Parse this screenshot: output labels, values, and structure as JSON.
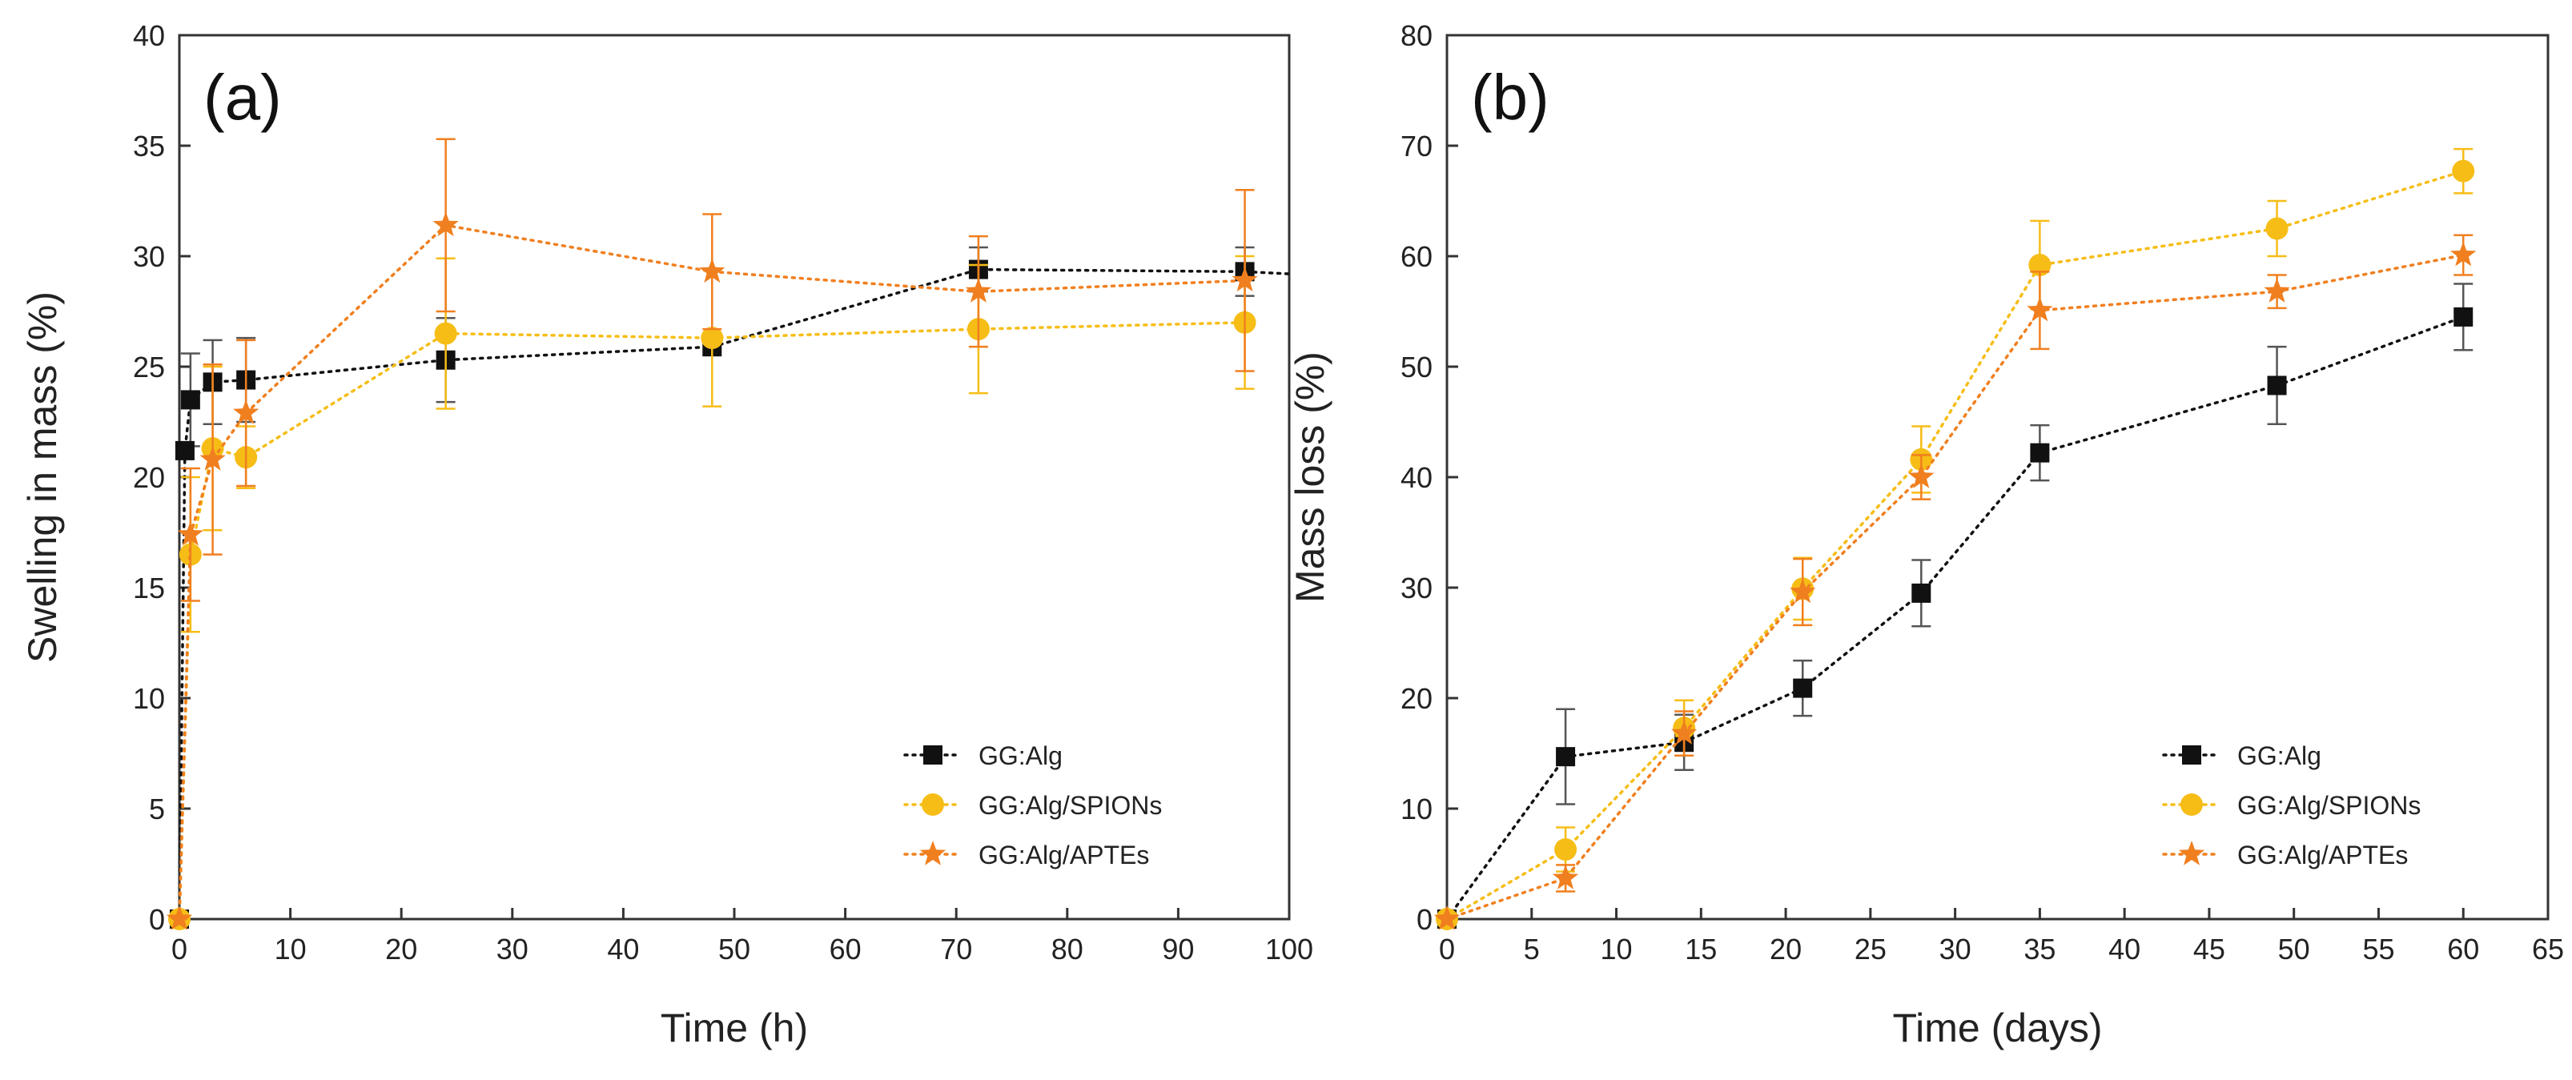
{
  "colors": {
    "GG:Alg": "#111111",
    "GG:Alg/SPIONs": "#f6bd16",
    "GG:Alg/APTEs": "#f07f1f"
  },
  "chart_data": [
    {
      "id": "a",
      "type": "line",
      "panel_label": "(a)",
      "xlabel": "Time (h)",
      "ylabel": "Swelling in mass (%)",
      "xlim": [
        0,
        100
      ],
      "ylim": [
        0,
        40
      ],
      "xticks": [
        "0",
        "10",
        "20",
        "30",
        "40",
        "50",
        "60",
        "70",
        "80",
        "90",
        "100"
      ],
      "yticks": [
        "0",
        "5",
        "10",
        "15",
        "20",
        "25",
        "30",
        "35",
        "40"
      ],
      "legend_position": "bottom-right",
      "series": [
        {
          "name": "GG:Alg",
          "marker": "square",
          "x": [
            0,
            0.5,
            1,
            3,
            6,
            24,
            48,
            72,
            96
          ],
          "y": [
            0,
            21.2,
            23.5,
            24.3,
            24.4,
            25.3,
            25.9,
            29.4,
            29.3
          ],
          "err": [
            0,
            0,
            2.1,
            1.9,
            1.9,
            1.9,
            0,
            1.0,
            1.1
          ],
          "tail_x": 100,
          "tail_y": 29.2
        },
        {
          "name": "GG:Alg/SPIONs",
          "marker": "circle",
          "x": [
            0,
            1,
            3,
            6,
            24,
            48,
            72,
            96
          ],
          "y": [
            0,
            16.5,
            21.3,
            20.9,
            26.5,
            26.3,
            26.7,
            27.0
          ],
          "err": [
            0,
            3.5,
            3.7,
            1.4,
            3.4,
            3.1,
            2.9,
            3.0
          ]
        },
        {
          "name": "GG:Alg/APTEs",
          "marker": "star",
          "x": [
            0,
            1,
            3,
            6,
            24,
            48,
            72,
            96
          ],
          "y": [
            0,
            17.4,
            20.8,
            22.9,
            31.4,
            29.3,
            28.4,
            28.9
          ],
          "err": [
            0,
            3.0,
            4.3,
            3.3,
            3.9,
            2.6,
            2.5,
            4.1
          ]
        }
      ]
    },
    {
      "id": "b",
      "type": "line",
      "panel_label": "(b)",
      "xlabel": "Time (days)",
      "ylabel": "Mass loss (%)",
      "xlim": [
        0,
        65
      ],
      "ylim": [
        0,
        80
      ],
      "xticks": [
        "0",
        "5",
        "10",
        "15",
        "20",
        "25",
        "30",
        "35",
        "40",
        "45",
        "50",
        "55",
        "60",
        "65"
      ],
      "yticks": [
        "0",
        "10",
        "20",
        "30",
        "40",
        "50",
        "60",
        "70",
        "80"
      ],
      "legend_position": "bottom-right",
      "series": [
        {
          "name": "GG:Alg",
          "marker": "square",
          "x": [
            0,
            7,
            14,
            21,
            28,
            35,
            49,
            60
          ],
          "y": [
            0,
            14.7,
            16.0,
            20.9,
            29.5,
            42.2,
            48.3,
            54.5
          ],
          "err": [
            0,
            4.3,
            2.5,
            2.5,
            3.0,
            2.5,
            3.5,
            3.0
          ]
        },
        {
          "name": "GG:Alg/SPIONs",
          "marker": "circle",
          "x": [
            0,
            7,
            14,
            21,
            28,
            35,
            49,
            60
          ],
          "y": [
            0,
            6.3,
            17.3,
            29.9,
            41.6,
            59.2,
            62.5,
            67.7
          ],
          "err": [
            0,
            2.0,
            2.5,
            2.8,
            3.0,
            4.0,
            2.5,
            2.0
          ]
        },
        {
          "name": "GG:Alg/APTEs",
          "marker": "star",
          "x": [
            0,
            7,
            14,
            21,
            28,
            35,
            49,
            60
          ],
          "y": [
            0,
            3.7,
            16.8,
            29.6,
            40.0,
            55.1,
            56.8,
            60.1
          ],
          "err": [
            0,
            1.2,
            2.0,
            3.0,
            2.0,
            3.5,
            1.5,
            1.8
          ]
        }
      ]
    }
  ]
}
